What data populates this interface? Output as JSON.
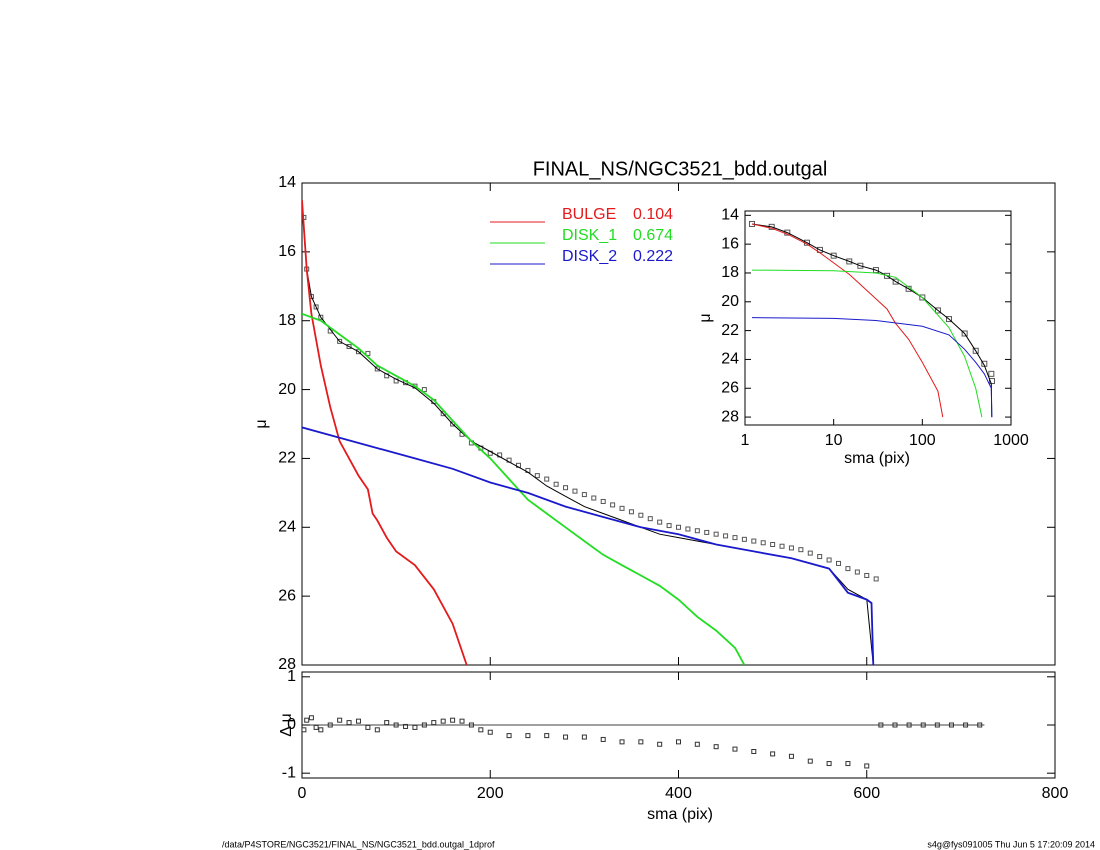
{
  "chart_data": [
    {
      "type": "line",
      "title": "FINAL_NS/NGC3521_bdd.outgal",
      "ylabel": "μ",
      "xlim": [
        0,
        800
      ],
      "ylim": [
        28,
        14
      ],
      "xticks": [
        0,
        200,
        400,
        600,
        800
      ],
      "yticks": [
        14,
        16,
        18,
        20,
        22,
        24,
        26,
        28
      ],
      "xtick_labels": false,
      "series": [
        {
          "marker": "square",
          "color": "#555555",
          "x": [
            2,
            5,
            10,
            15,
            20,
            30,
            40,
            50,
            60,
            70,
            80,
            90,
            100,
            110,
            120,
            130,
            140,
            150,
            160,
            170,
            180,
            190,
            200,
            210,
            220,
            230,
            240,
            250,
            260,
            270,
            280,
            290,
            300,
            310,
            320,
            330,
            340,
            350,
            360,
            370,
            380,
            390,
            400,
            410,
            420,
            430,
            440,
            450,
            460,
            470,
            480,
            490,
            500,
            510,
            520,
            530,
            540,
            550,
            560,
            570,
            580,
            590,
            600,
            610
          ],
          "values": [
            15,
            16.5,
            17.3,
            17.6,
            17.9,
            18.3,
            18.6,
            18.75,
            18.9,
            18.95,
            19.4,
            19.6,
            19.75,
            19.8,
            19.9,
            20,
            20.35,
            20.7,
            21,
            21.3,
            21.55,
            21.7,
            21.85,
            21.9,
            22.05,
            22.2,
            22.35,
            22.5,
            22.6,
            22.75,
            22.85,
            22.95,
            23.05,
            23.15,
            23.25,
            23.35,
            23.45,
            23.55,
            23.65,
            23.75,
            23.85,
            23.95,
            24,
            24.05,
            24.1,
            24.15,
            24.2,
            24.25,
            24.3,
            24.35,
            24.4,
            24.45,
            24.5,
            24.55,
            24.6,
            24.65,
            24.75,
            24.85,
            24.95,
            25.05,
            25.2,
            25.3,
            25.4,
            25.5
          ]
        },
        {
          "color": "#000000",
          "x": [
            0,
            5,
            10,
            20,
            40,
            60,
            80,
            100,
            120,
            140,
            160,
            180,
            200,
            220,
            240,
            260,
            280,
            300,
            320,
            340,
            360,
            380,
            400,
            440,
            480,
            520,
            560,
            580,
            600,
            607
          ],
          "values": [
            14.6,
            16.5,
            17.3,
            17.9,
            18.6,
            18.9,
            19.4,
            19.7,
            19.95,
            20.4,
            21,
            21.5,
            21.8,
            22.1,
            22.4,
            22.8,
            23.1,
            23.4,
            23.6,
            23.8,
            24,
            24.2,
            24.3,
            24.5,
            24.7,
            24.9,
            25.2,
            25.8,
            26.1,
            28
          ]
        },
        {
          "name": "BULGE",
          "fraction": 0.104,
          "color": "#e41a1c",
          "x": [
            0,
            5,
            10,
            20,
            30,
            40,
            50,
            60,
            70,
            75,
            80,
            90,
            100,
            120,
            140,
            160,
            170,
            175
          ],
          "values": [
            14.5,
            16.5,
            17.8,
            19.3,
            20.5,
            21.5,
            22,
            22.5,
            22.9,
            23.6,
            23.8,
            24.3,
            24.7,
            25.1,
            25.8,
            26.8,
            27.6,
            28
          ]
        },
        {
          "name": "DISK_1",
          "fraction": 0.674,
          "color": "#22dd22",
          "x": [
            0,
            20,
            40,
            60,
            80,
            100,
            120,
            140,
            160,
            180,
            200,
            220,
            240,
            260,
            280,
            300,
            320,
            340,
            360,
            380,
            400,
            420,
            440,
            460,
            470
          ],
          "values": [
            17.8,
            18,
            18.4,
            18.8,
            19.3,
            19.6,
            19.9,
            20.3,
            20.9,
            21.5,
            22,
            22.6,
            23.2,
            23.6,
            24,
            24.4,
            24.8,
            25.1,
            25.4,
            25.7,
            26.1,
            26.6,
            27,
            27.5,
            28
          ]
        },
        {
          "name": "DISK_2",
          "fraction": 0.222,
          "color": "#1a1acc",
          "x": [
            0,
            40,
            80,
            120,
            160,
            200,
            240,
            280,
            320,
            360,
            400,
            440,
            480,
            520,
            560,
            580,
            600,
            605,
            607
          ],
          "values": [
            21.1,
            21.4,
            21.7,
            22,
            22.3,
            22.7,
            23,
            23.4,
            23.7,
            24,
            24.2,
            24.5,
            24.7,
            24.9,
            25.2,
            25.9,
            26.1,
            26.2,
            28
          ]
        }
      ]
    },
    {
      "type": "line",
      "ylabel": "Δ μ",
      "xlabel": "sma (pix)",
      "xlim": [
        0,
        800
      ],
      "ylim": [
        -1.1,
        1.1
      ],
      "xticks": [
        0,
        200,
        400,
        600,
        800
      ],
      "yticks": [
        -1,
        0,
        1
      ],
      "zero_line": [
        0,
        725
      ],
      "series": [
        {
          "marker": "square",
          "color": "#333333",
          "x": [
            2,
            5,
            10,
            15,
            20,
            30,
            40,
            50,
            60,
            70,
            80,
            90,
            100,
            110,
            120,
            130,
            140,
            150,
            160,
            170,
            180,
            190,
            200,
            220,
            240,
            260,
            280,
            300,
            320,
            340,
            360,
            380,
            400,
            420,
            440,
            460,
            480,
            500,
            520,
            540,
            560,
            580,
            600,
            615,
            630,
            645,
            660,
            675,
            690,
            705,
            720
          ],
          "values": [
            -0.1,
            0.1,
            0.15,
            -0.05,
            -0.1,
            0,
            0.1,
            0.05,
            0.08,
            -0.05,
            -0.1,
            0.05,
            0,
            -0.03,
            -0.05,
            0,
            0.05,
            0.08,
            0.1,
            0.08,
            0,
            -0.1,
            -0.15,
            -0.22,
            -0.22,
            -0.22,
            -0.25,
            -0.25,
            -0.3,
            -0.35,
            -0.35,
            -0.4,
            -0.35,
            -0.4,
            -0.45,
            -0.5,
            -0.55,
            -0.6,
            -0.65,
            -0.75,
            -0.8,
            -0.8,
            -0.85,
            0,
            0,
            0,
            0,
            0,
            0,
            0,
            0
          ]
        }
      ]
    },
    {
      "type": "line",
      "ylabel": "μ",
      "xlabel": "sma (pix)",
      "xlog": true,
      "xlim": [
        1,
        1000
      ],
      "ylim": [
        28.55,
        13.7
      ],
      "xticks": [
        1,
        10,
        100,
        1000
      ],
      "yticks": [
        14,
        16,
        18,
        20,
        22,
        24,
        26,
        28
      ],
      "series": [
        {
          "marker": "square",
          "color": "#555555",
          "x": [
            1.2,
            2,
            3,
            5,
            7,
            10,
            15,
            20,
            30,
            40,
            50,
            70,
            100,
            150,
            200,
            300,
            400,
            500,
            600,
            610
          ],
          "values": [
            14.6,
            14.8,
            15.2,
            15.9,
            16.4,
            16.8,
            17.2,
            17.5,
            17.8,
            18.2,
            18.6,
            19.1,
            19.7,
            20.6,
            21.2,
            22.2,
            23.4,
            24.3,
            25,
            25.5
          ]
        },
        {
          "color": "#000000",
          "x": [
            1.2,
            2,
            3,
            5,
            7,
            10,
            15,
            20,
            30,
            40,
            50,
            70,
            100,
            150,
            200,
            300,
            400,
            500,
            600,
            607
          ],
          "values": [
            14.6,
            14.8,
            15.2,
            15.9,
            16.4,
            16.8,
            17.2,
            17.5,
            17.8,
            18.2,
            18.6,
            19.1,
            19.7,
            20.6,
            21.2,
            22.2,
            23.4,
            24.4,
            25.7,
            28
          ]
        },
        {
          "color": "#e41a1c",
          "x": [
            1.2,
            2,
            3,
            5,
            7,
            10,
            15,
            20,
            30,
            40,
            50,
            70,
            100,
            150,
            170
          ],
          "values": [
            14.6,
            14.9,
            15.3,
            16,
            16.6,
            17.3,
            18.1,
            18.8,
            19.8,
            20.5,
            21.5,
            22.6,
            24.2,
            26.2,
            28
          ]
        },
        {
          "color": "#22dd22",
          "x": [
            1.2,
            10,
            30,
            50,
            100,
            200,
            300,
            400,
            470
          ],
          "values": [
            17.8,
            17.85,
            18,
            18.3,
            19.7,
            21.8,
            23.8,
            26,
            28
          ]
        },
        {
          "color": "#1a1acc",
          "x": [
            1.2,
            10,
            30,
            100,
            200,
            300,
            400,
            500,
            600,
            607
          ],
          "values": [
            21.1,
            21.15,
            21.3,
            21.7,
            22.3,
            23.3,
            24.2,
            25,
            26,
            28
          ]
        }
      ]
    }
  ],
  "footer": {
    "left": "/data/P4STORE/NGC3521/FINAL_NS/NGC3521_bdd.outgal_1dprof",
    "right": "s4g@fys091005  Thu Jun  5 17:20:09 2014"
  }
}
